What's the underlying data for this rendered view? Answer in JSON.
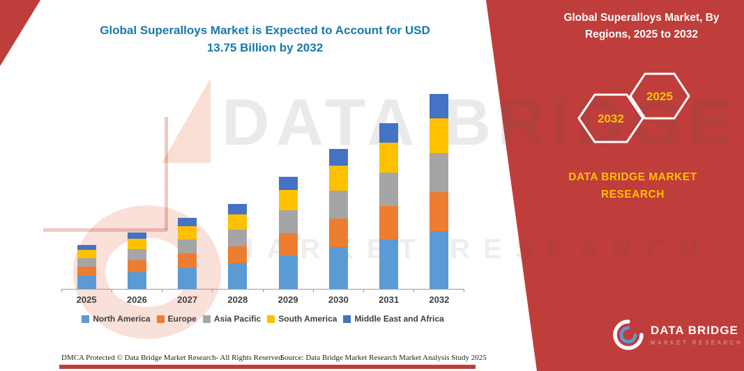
{
  "header": {
    "title_line1": "Global Superalloys Market is Expected to Account for USD",
    "title_line2": "13.75 Billion by 2032"
  },
  "watermark": {
    "line1": "DATA BRIDGE",
    "line2": "MARKET RESEARCH"
  },
  "panel": {
    "bg_color": "#bf3d3a",
    "accent_color": "#ffc000",
    "heading": "Global Superalloys Market, By Regions, 2025 to 2032",
    "hexagon_left": "2032",
    "hexagon_right": "2025",
    "brand_text": "DATA BRIDGE MARKET RESEARCH",
    "logo_name": "DATA BRIDGE",
    "logo_subtitle": "MARKET RESEARCH"
  },
  "footer": {
    "left": "DMCA Protected © Data Bridge Market Research- All Rights Reserved.",
    "right": "Source: Data Bridge Market Research Market Analysis Study 2025"
  },
  "chart_data": {
    "type": "bar",
    "stacked": true,
    "title": "Global Superalloys Market is Expected to Account for USD 13.75 Billion by 2032",
    "unit": "USD Billion",
    "categories": [
      "2025",
      "2026",
      "2027",
      "2028",
      "2029",
      "2030",
      "2031",
      "2032"
    ],
    "series": [
      {
        "name": "North America",
        "color": "#5B9BD5",
        "values": [
          0.95,
          1.2,
          1.5,
          1.8,
          2.35,
          2.95,
          3.5,
          4.1
        ]
      },
      {
        "name": "Europe",
        "color": "#ED7D31",
        "values": [
          0.62,
          0.8,
          1.0,
          1.2,
          1.6,
          2.0,
          2.35,
          2.75
        ]
      },
      {
        "name": "Asia Pacific",
        "color": "#A5A5A5",
        "values": [
          0.62,
          0.8,
          1.0,
          1.2,
          1.6,
          2.0,
          2.35,
          2.75
        ]
      },
      {
        "name": "South America",
        "color": "#FFC000",
        "values": [
          0.55,
          0.72,
          0.9,
          1.08,
          1.4,
          1.75,
          2.1,
          2.45
        ]
      },
      {
        "name": "Middle East and Africa",
        "color": "#4472C4",
        "values": [
          0.36,
          0.48,
          0.6,
          0.72,
          0.95,
          1.2,
          1.4,
          1.7
        ]
      }
    ],
    "totals": [
      3.1,
      4.0,
      5.0,
      6.0,
      7.9,
      9.9,
      11.7,
      13.75
    ],
    "ylim": [
      0,
      13.75
    ],
    "gridlines": false,
    "legend_position": "bottom"
  }
}
